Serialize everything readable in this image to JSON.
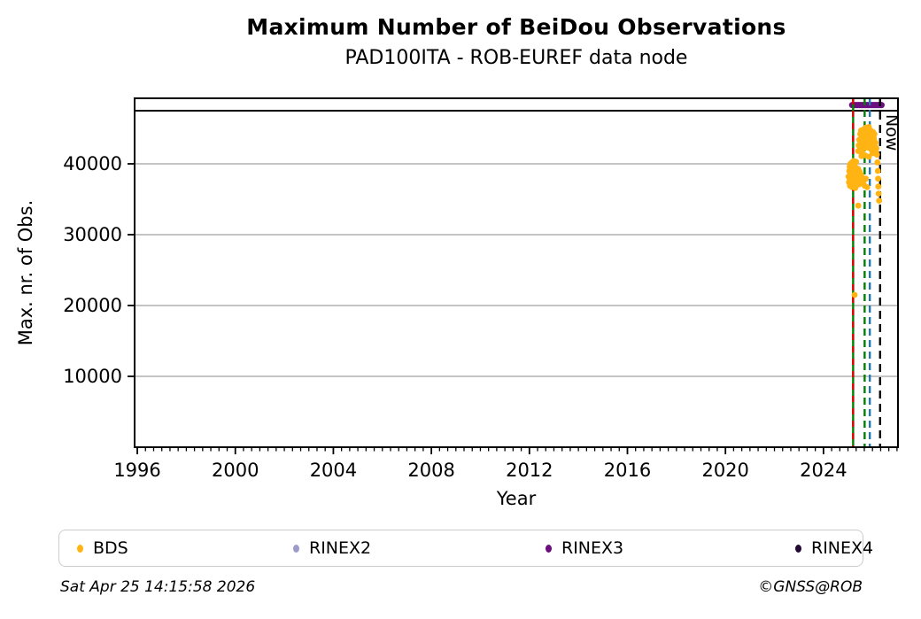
{
  "header": {
    "title": "Maximum Number of BeiDou Observations",
    "subtitle": "PAD100ITA - ROB-EUREF data node"
  },
  "footer": {
    "timestamp": "Sat Apr 25 14:15:58 2026",
    "copyright": "©GNSS@ROB"
  },
  "legend": {
    "items": [
      {
        "label": "BDS",
        "color": "#FFB414"
      },
      {
        "label": "RINEX2",
        "color": "#9D9BC9"
      },
      {
        "label": "RINEX3",
        "color": "#6C0D80"
      },
      {
        "label": "RINEX4",
        "color": "#240935"
      }
    ]
  },
  "chart_data": {
    "type": "scatter",
    "title": "Maximum Number of BeiDou Observations",
    "subtitle": "PAD100ITA - ROB-EUREF data node",
    "xlabel": "Year",
    "ylabel": "Max. nr. of Obs.",
    "xlim": [
      1995.89,
      2027.04
    ],
    "ylim": [
      0,
      49250
    ],
    "xticks": [
      1996,
      2000,
      2004,
      2008,
      2012,
      2016,
      2020,
      2024
    ],
    "x_minor_step": 0.33333,
    "yticks": [
      10000,
      20000,
      30000,
      40000
    ],
    "grid": "horizontal",
    "grid_color": "#b0b0b0",
    "axis_color": "#000000",
    "hline": {
      "value": 47500,
      "color": "#000000"
    },
    "availability_bar": {
      "series": "RINEX3",
      "start": 2025.17,
      "end": 2026.37,
      "value": 48300,
      "color": "#6C0D80"
    },
    "vertical_lines": [
      {
        "year": 2025.21,
        "color": "#008000",
        "style": "solid"
      },
      {
        "year": 2025.21,
        "color": "#DC0000",
        "style": "dashed",
        "dash": "7 7"
      },
      {
        "year": 2025.68,
        "color": "#008000",
        "style": "dashed",
        "dash": "8 5"
      },
      {
        "year": 2025.89,
        "color": "#1F77B4",
        "style": "dashed",
        "dash": "8 5"
      },
      {
        "year": 2026.31,
        "color": "#000000",
        "style": "dashed",
        "dash": "9 6",
        "label": "Now"
      }
    ],
    "now_label": "Now",
    "series": [
      {
        "name": "BDS",
        "color": "#FFB414",
        "points": [
          [
            2025.02,
            38200
          ],
          [
            2025.04,
            37400
          ],
          [
            2025.05,
            39000
          ],
          [
            2025.06,
            38000
          ],
          [
            2025.07,
            39600
          ],
          [
            2025.08,
            36900
          ],
          [
            2025.09,
            38500
          ],
          [
            2025.1,
            40000
          ],
          [
            2025.11,
            37200
          ],
          [
            2025.12,
            38900
          ],
          [
            2025.13,
            39700
          ],
          [
            2025.14,
            37800
          ],
          [
            2025.15,
            38300
          ],
          [
            2025.16,
            40200
          ],
          [
            2025.17,
            36700
          ],
          [
            2025.18,
            39200
          ],
          [
            2025.19,
            38600
          ],
          [
            2025.2,
            37500
          ],
          [
            2025.21,
            39900
          ],
          [
            2025.22,
            38100
          ],
          [
            2025.23,
            40400
          ],
          [
            2025.24,
            37000
          ],
          [
            2025.25,
            38800
          ],
          [
            2025.26,
            39400
          ],
          [
            2025.27,
            37600
          ],
          [
            2025.28,
            40100
          ],
          [
            2025.29,
            38400
          ],
          [
            2025.3,
            36600
          ],
          [
            2025.31,
            39500
          ],
          [
            2025.32,
            38000
          ],
          [
            2025.33,
            40300
          ],
          [
            2025.34,
            37300
          ],
          [
            2025.35,
            39100
          ],
          [
            2025.37,
            38700
          ],
          [
            2025.39,
            37900
          ],
          [
            2025.41,
            39300
          ],
          [
            2025.43,
            38200
          ],
          [
            2025.45,
            37100
          ],
          [
            2025.47,
            38900
          ],
          [
            2025.5,
            37700
          ],
          [
            2025.53,
            38500
          ],
          [
            2025.56,
            37300
          ],
          [
            2025.6,
            38000
          ],
          [
            2025.64,
            37600
          ],
          [
            2025.68,
            36900
          ],
          [
            2025.73,
            37900
          ],
          [
            2025.78,
            36700
          ],
          [
            2025.42,
            41800
          ],
          [
            2025.44,
            42600
          ],
          [
            2025.46,
            43400
          ],
          [
            2025.48,
            42000
          ],
          [
            2025.5,
            44200
          ],
          [
            2025.52,
            43000
          ],
          [
            2025.53,
            44700
          ],
          [
            2025.55,
            42400
          ],
          [
            2025.57,
            43800
          ],
          [
            2025.58,
            41500
          ],
          [
            2025.6,
            44400
          ],
          [
            2025.62,
            42900
          ],
          [
            2025.63,
            43500
          ],
          [
            2025.65,
            44900
          ],
          [
            2025.67,
            42200
          ],
          [
            2025.68,
            43900
          ],
          [
            2025.7,
            44600
          ],
          [
            2025.72,
            43100
          ],
          [
            2025.73,
            45100
          ],
          [
            2025.75,
            42700
          ],
          [
            2025.77,
            44000
          ],
          [
            2025.78,
            43300
          ],
          [
            2025.8,
            44800
          ],
          [
            2025.82,
            42300
          ],
          [
            2025.83,
            43700
          ],
          [
            2025.85,
            45200
          ],
          [
            2025.87,
            42800
          ],
          [
            2025.88,
            44100
          ],
          [
            2025.9,
            43500
          ],
          [
            2025.92,
            44700
          ],
          [
            2025.93,
            42100
          ],
          [
            2025.95,
            43900
          ],
          [
            2025.97,
            44300
          ],
          [
            2025.98,
            42600
          ],
          [
            2026.0,
            43200
          ],
          [
            2026.02,
            44500
          ],
          [
            2026.04,
            41900
          ],
          [
            2026.06,
            43600
          ],
          [
            2026.08,
            44200
          ],
          [
            2026.1,
            42500
          ],
          [
            2026.12,
            43000
          ],
          [
            2026.14,
            41700
          ],
          [
            2026.16,
            42200
          ],
          [
            2026.18,
            41300
          ],
          [
            2025.55,
            41100
          ],
          [
            2025.7,
            41200
          ],
          [
            2025.85,
            41000
          ],
          [
            2026.0,
            41500
          ],
          [
            2026.2,
            40200
          ],
          [
            2026.22,
            39000
          ],
          [
            2026.23,
            37900
          ],
          [
            2026.24,
            36800
          ],
          [
            2026.25,
            35800
          ],
          [
            2026.27,
            34800
          ],
          [
            2025.42,
            34100
          ],
          [
            2025.27,
            21500
          ]
        ]
      }
    ]
  }
}
